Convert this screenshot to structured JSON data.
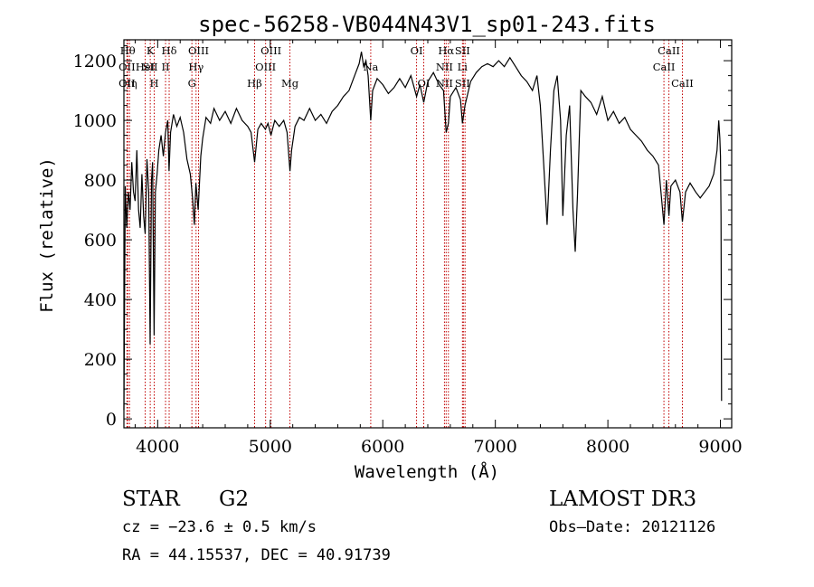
{
  "chart_data": {
    "type": "line",
    "title": "spec-56258-VB044N43V1_sp01-243.fits",
    "xlabel": "Wavelength (Å)",
    "ylabel": "Flux (relative)",
    "xlim": [
      3700,
      9100
    ],
    "ylim": [
      -30,
      1270
    ],
    "x_ticks": [
      4000,
      5000,
      6000,
      7000,
      8000,
      9000
    ],
    "y_ticks": [
      0,
      200,
      400,
      600,
      800,
      1000,
      1200
    ],
    "series": [
      {
        "name": "flux",
        "points": [
          [
            3700,
            30
          ],
          [
            3712,
            780
          ],
          [
            3725,
            640
          ],
          [
            3740,
            760
          ],
          [
            3755,
            700
          ],
          [
            3770,
            860
          ],
          [
            3785,
            760
          ],
          [
            3800,
            730
          ],
          [
            3815,
            900
          ],
          [
            3830,
            700
          ],
          [
            3845,
            640
          ],
          [
            3860,
            820
          ],
          [
            3875,
            680
          ],
          [
            3889,
            620
          ],
          [
            3905,
            870
          ],
          [
            3920,
            760
          ],
          [
            3933,
            250
          ],
          [
            3945,
            800
          ],
          [
            3955,
            860
          ],
          [
            3968,
            280
          ],
          [
            3980,
            760
          ],
          [
            3995,
            820
          ],
          [
            4010,
            900
          ],
          [
            4030,
            950
          ],
          [
            4050,
            880
          ],
          [
            4070,
            960
          ],
          [
            4090,
            1000
          ],
          [
            4101,
            830
          ],
          [
            4115,
            960
          ],
          [
            4140,
            1020
          ],
          [
            4170,
            980
          ],
          [
            4200,
            1010
          ],
          [
            4230,
            960
          ],
          [
            4260,
            870
          ],
          [
            4290,
            820
          ],
          [
            4310,
            740
          ],
          [
            4326,
            650
          ],
          [
            4340,
            790
          ],
          [
            4360,
            700
          ],
          [
            4383,
            880
          ],
          [
            4400,
            940
          ],
          [
            4430,
            1010
          ],
          [
            4470,
            990
          ],
          [
            4500,
            1040
          ],
          [
            4550,
            1000
          ],
          [
            4600,
            1030
          ],
          [
            4650,
            990
          ],
          [
            4700,
            1040
          ],
          [
            4750,
            1000
          ],
          [
            4800,
            980
          ],
          [
            4830,
            960
          ],
          [
            4861,
            860
          ],
          [
            4890,
            970
          ],
          [
            4920,
            990
          ],
          [
            4957,
            970
          ],
          [
            4980,
            990
          ],
          [
            5007,
            950
          ],
          [
            5040,
            1000
          ],
          [
            5080,
            980
          ],
          [
            5120,
            1000
          ],
          [
            5150,
            960
          ],
          [
            5175,
            830
          ],
          [
            5190,
            900
          ],
          [
            5220,
            980
          ],
          [
            5260,
            1010
          ],
          [
            5300,
            1000
          ],
          [
            5350,
            1040
          ],
          [
            5400,
            1000
          ],
          [
            5450,
            1020
          ],
          [
            5500,
            990
          ],
          [
            5550,
            1030
          ],
          [
            5600,
            1050
          ],
          [
            5650,
            1080
          ],
          [
            5700,
            1100
          ],
          [
            5750,
            1150
          ],
          [
            5790,
            1190
          ],
          [
            5810,
            1230
          ],
          [
            5830,
            1180
          ],
          [
            5850,
            1200
          ],
          [
            5870,
            1150
          ],
          [
            5893,
            1000
          ],
          [
            5910,
            1100
          ],
          [
            5950,
            1140
          ],
          [
            6000,
            1120
          ],
          [
            6050,
            1090
          ],
          [
            6100,
            1110
          ],
          [
            6150,
            1140
          ],
          [
            6200,
            1110
          ],
          [
            6250,
            1150
          ],
          [
            6300,
            1080
          ],
          [
            6330,
            1120
          ],
          [
            6364,
            1060
          ],
          [
            6400,
            1130
          ],
          [
            6450,
            1160
          ],
          [
            6500,
            1120
          ],
          [
            6540,
            1100
          ],
          [
            6563,
            960
          ],
          [
            6583,
            990
          ],
          [
            6600,
            1080
          ],
          [
            6650,
            1110
          ],
          [
            6690,
            1070
          ],
          [
            6708,
            990
          ],
          [
            6730,
            1050
          ],
          [
            6780,
            1130
          ],
          [
            6830,
            1160
          ],
          [
            6880,
            1180
          ],
          [
            6930,
            1190
          ],
          [
            6980,
            1180
          ],
          [
            7030,
            1200
          ],
          [
            7080,
            1180
          ],
          [
            7130,
            1210
          ],
          [
            7180,
            1180
          ],
          [
            7230,
            1150
          ],
          [
            7280,
            1130
          ],
          [
            7330,
            1100
          ],
          [
            7370,
            1150
          ],
          [
            7400,
            1050
          ],
          [
            7430,
            850
          ],
          [
            7460,
            650
          ],
          [
            7490,
            900
          ],
          [
            7520,
            1100
          ],
          [
            7550,
            1150
          ],
          [
            7580,
            1000
          ],
          [
            7600,
            680
          ],
          [
            7630,
            950
          ],
          [
            7660,
            1050
          ],
          [
            7690,
            700
          ],
          [
            7710,
            560
          ],
          [
            7730,
            750
          ],
          [
            7760,
            1100
          ],
          [
            7800,
            1080
          ],
          [
            7850,
            1060
          ],
          [
            7900,
            1020
          ],
          [
            7950,
            1080
          ],
          [
            8000,
            1000
          ],
          [
            8050,
            1030
          ],
          [
            8100,
            990
          ],
          [
            8150,
            1010
          ],
          [
            8200,
            970
          ],
          [
            8250,
            950
          ],
          [
            8300,
            930
          ],
          [
            8350,
            900
          ],
          [
            8400,
            880
          ],
          [
            8450,
            850
          ],
          [
            8498,
            650
          ],
          [
            8520,
            800
          ],
          [
            8542,
            680
          ],
          [
            8560,
            780
          ],
          [
            8600,
            800
          ],
          [
            8640,
            760
          ],
          [
            8662,
            660
          ],
          [
            8690,
            760
          ],
          [
            8730,
            790
          ],
          [
            8780,
            760
          ],
          [
            8820,
            740
          ],
          [
            8860,
            760
          ],
          [
            8900,
            780
          ],
          [
            8940,
            820
          ],
          [
            8970,
            900
          ],
          [
            8985,
            1000
          ],
          [
            8995,
            940
          ],
          [
            9000,
            880
          ],
          [
            9005,
            680
          ],
          [
            9010,
            60
          ]
        ]
      }
    ],
    "line_markers": [
      {
        "wl": 3734,
        "rows": [
          [
            "Hθ",
            0
          ]
        ]
      },
      {
        "wl": 3727,
        "rows": [
          [
            "OII",
            1
          ],
          [
            "OII",
            2
          ]
        ]
      },
      {
        "wl": 3750,
        "rows": [
          [
            "Hη",
            2
          ]
        ]
      },
      {
        "wl": 3889,
        "rows": [
          [
            "HeI",
            1
          ]
        ]
      },
      {
        "wl": 3934,
        "rows": [
          [
            "K",
            0
          ],
          [
            "SII",
            1
          ]
        ]
      },
      {
        "wl": 3969,
        "rows": [
          [
            "H",
            2
          ]
        ]
      },
      {
        "wl": 4102,
        "rows": [
          [
            "Hδ",
            0
          ]
        ]
      },
      {
        "wl": 4070,
        "rows": [
          [
            "II",
            1
          ]
        ]
      },
      {
        "wl": 4304,
        "rows": [
          [
            "G",
            2
          ]
        ]
      },
      {
        "wl": 4341,
        "rows": [
          [
            "Hγ",
            1
          ]
        ]
      },
      {
        "wl": 4363,
        "rows": [
          [
            "OIII",
            0
          ]
        ]
      },
      {
        "wl": 4861,
        "rows": [
          [
            "Hβ",
            2
          ]
        ]
      },
      {
        "wl": 4959,
        "rows": [
          [
            "OIII",
            1
          ]
        ]
      },
      {
        "wl": 5007,
        "rows": [
          [
            "OIII",
            0
          ]
        ]
      },
      {
        "wl": 5175,
        "rows": [
          [
            "Mg",
            2
          ]
        ]
      },
      {
        "wl": 5893,
        "rows": [
          [
            "Na",
            1
          ]
        ]
      },
      {
        "wl": 6300,
        "rows": [
          [
            "OI",
            0
          ]
        ]
      },
      {
        "wl": 6364,
        "rows": [
          [
            "OI",
            2
          ]
        ]
      },
      {
        "wl": 6548,
        "rows": [
          [
            "NII",
            1
          ],
          [
            "NII",
            2
          ]
        ]
      },
      {
        "wl": 6563,
        "rows": [
          [
            "Hα",
            0
          ]
        ]
      },
      {
        "wl": 6583,
        "rows": []
      },
      {
        "wl": 6708,
        "rows": [
          [
            "SII",
            0
          ],
          [
            "Li",
            1
          ],
          [
            "SII",
            2
          ]
        ]
      },
      {
        "wl": 6716,
        "rows": []
      },
      {
        "wl": 6731,
        "rows": []
      },
      {
        "wl": 8498,
        "rows": [
          [
            "CaII",
            1
          ]
        ]
      },
      {
        "wl": 8542,
        "rows": [
          [
            "CaII",
            0
          ]
        ]
      },
      {
        "wl": 8662,
        "rows": [
          [
            "CaII",
            2
          ]
        ]
      }
    ]
  },
  "info": {
    "class": "STAR",
    "subclass": "G2",
    "survey": "LAMOST DR3",
    "cz": "cz = −23.6 ± 0.5 km/s",
    "obs_date": "Obs–Date: 20121126",
    "coords": "RA =  44.15537, DEC =  40.91739"
  }
}
